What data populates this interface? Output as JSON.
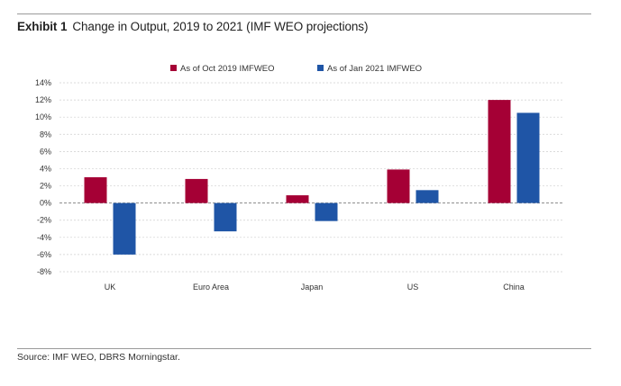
{
  "header": {
    "exhibit": "Exhibit 1",
    "title": "Change in Output, 2019 to 2021 (IMF WEO projections)"
  },
  "footer": {
    "source": "Source: IMF WEO, DBRS Morningstar."
  },
  "colors": {
    "series1": "#a50035",
    "series2": "#1f55a6",
    "grid": "#cfcfcf"
  },
  "chart_data": {
    "type": "bar",
    "title": "Change in Output, 2019 to 2021 (IMF WEO projections)",
    "xlabel": "",
    "ylabel": "",
    "categories": [
      "UK",
      "Euro Area",
      "Japan",
      "US",
      "China"
    ],
    "series": [
      {
        "name": "As of Oct 2019 IMFWEO",
        "values": [
          3.0,
          2.8,
          0.9,
          3.9,
          12.0
        ]
      },
      {
        "name": "As of Jan 2021 IMFWEO",
        "values": [
          -6.0,
          -3.3,
          -2.1,
          1.5,
          10.5
        ]
      }
    ],
    "ylim": [
      -8,
      14
    ],
    "yticks": [
      14,
      12,
      10,
      8,
      6,
      4,
      2,
      0,
      -2,
      -4,
      -6,
      -8
    ],
    "ytick_labels": [
      "14%",
      "12%",
      "10%",
      "8%",
      "6%",
      "4%",
      "2%",
      "0%",
      "-2%",
      "-4%",
      "-6%",
      "-8%"
    ],
    "grid": true,
    "legend": "top-center"
  }
}
